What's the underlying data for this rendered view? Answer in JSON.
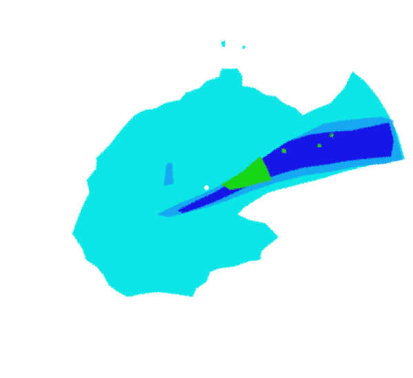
{
  "map": {
    "kind": "weather-radar-reflectivity",
    "palette": {
      "light": "#0ae6e6",
      "mid": "#17a8f0",
      "dark": "#1414e6",
      "strong": "#14d614",
      "strong_edge": "#3cbe3c",
      "site_marker": "#ffffff"
    },
    "site_marker_icon": "radar-site-dot-icon"
  }
}
